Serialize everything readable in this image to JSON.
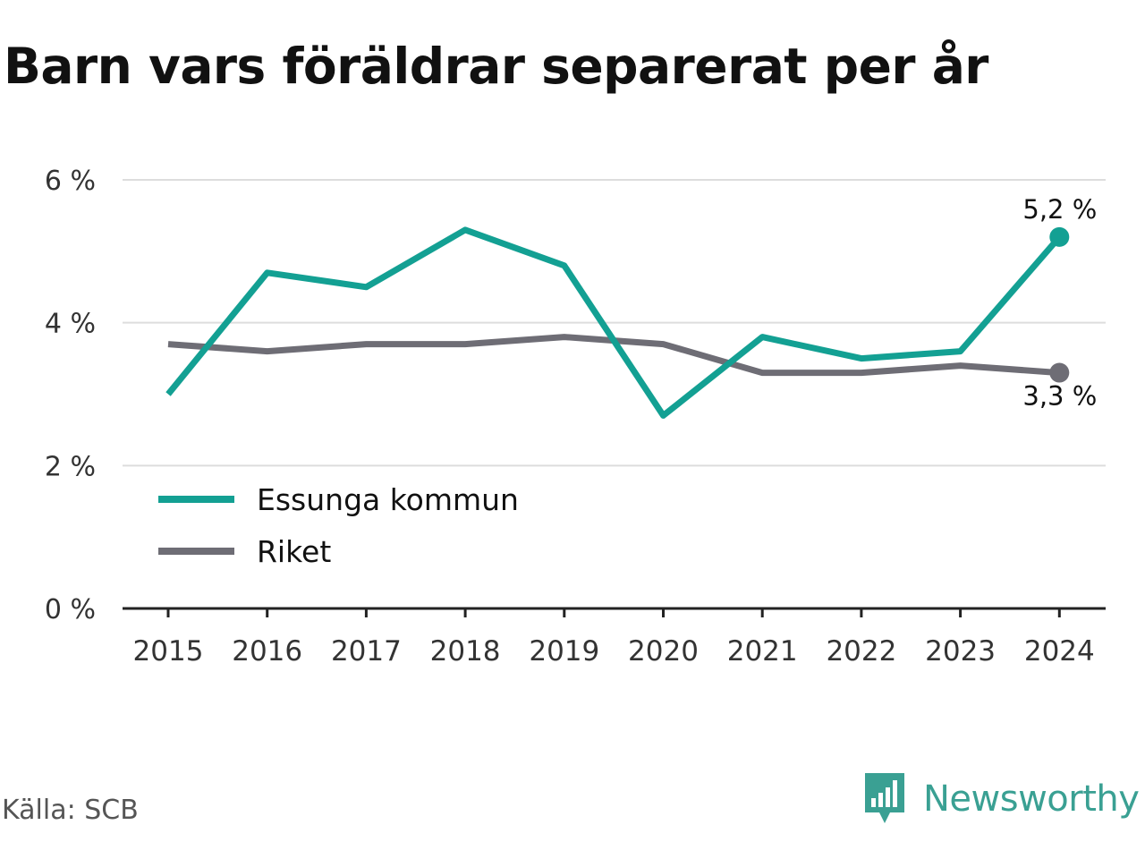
{
  "colors": {
    "essunga": "#13a093",
    "riket": "#6e6d75",
    "grid": "#dddddd",
    "axis": "#222222",
    "brand": "#3aa093"
  },
  "chart_data": {
    "type": "line",
    "title": "Barn vars föräldrar separerat per år",
    "x": [
      "2015",
      "2016",
      "2017",
      "2018",
      "2019",
      "2020",
      "2021",
      "2022",
      "2023",
      "2024"
    ],
    "series": [
      {
        "name": "Essunga kommun",
        "color": "#13a093",
        "values": [
          3.0,
          4.7,
          4.5,
          5.3,
          4.8,
          2.7,
          3.8,
          3.5,
          3.6,
          5.2
        ],
        "end_label": "5,2 %"
      },
      {
        "name": "Riket",
        "color": "#6e6d75",
        "values": [
          3.7,
          3.6,
          3.7,
          3.7,
          3.8,
          3.7,
          3.3,
          3.3,
          3.4,
          3.3
        ],
        "end_label": "3,3 %"
      }
    ],
    "ylim": [
      0,
      6
    ],
    "yticks": [
      0,
      2,
      4,
      6
    ],
    "ytick_labels": [
      "0 %",
      "2 %",
      "4 %",
      "6 %"
    ],
    "grid": true,
    "legend_position": "bottom-left"
  },
  "footer": {
    "source": "Källa: SCB",
    "brand": "Newsworthy",
    "brand_icon": "newsworthy-logo-icon"
  }
}
